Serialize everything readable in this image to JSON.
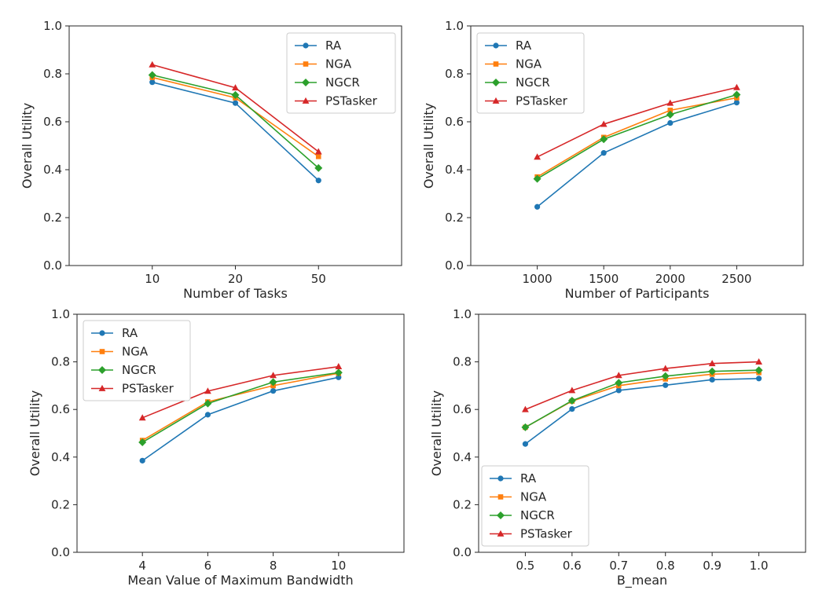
{
  "colors": {
    "RA": "#1f77b4",
    "NGA": "#ff7f0e",
    "NGCR": "#2ca02c",
    "PSTasker": "#d62728"
  },
  "markers": {
    "RA": "circle",
    "NGA": "square",
    "NGCR": "diamond",
    "PSTasker": "triangle"
  },
  "chart_data": [
    {
      "type": "line",
      "xlabel": "Number of Tasks",
      "ylabel": "Overall Utility",
      "xlim": [
        0,
        80
      ],
      "ylim": [
        0,
        1.0
      ],
      "x": [
        20,
        40,
        60
      ],
      "xtick_labels": [
        "10",
        "20",
        "50"
      ],
      "yticks": [
        "0.0",
        "0.2",
        "0.4",
        "0.6",
        "0.8",
        "1.0"
      ],
      "legend_position": "top-right",
      "series": [
        {
          "name": "RA",
          "values": [
            0.765,
            0.678,
            0.355
          ]
        },
        {
          "name": "NGA",
          "values": [
            0.785,
            0.7,
            0.455
          ]
        },
        {
          "name": "NGCR",
          "values": [
            0.795,
            0.712,
            0.407
          ]
        },
        {
          "name": "PSTasker",
          "values": [
            0.838,
            0.742,
            0.475
          ]
        }
      ]
    },
    {
      "type": "line",
      "xlabel": "Number of Participants",
      "ylabel": "Overall Utility",
      "xlim": [
        500,
        3000
      ],
      "ylim": [
        0,
        1.0
      ],
      "x": [
        1000,
        1500,
        2000,
        2500
      ],
      "xtick_labels": [
        "1000",
        "1500",
        "2000",
        "2500"
      ],
      "yticks": [
        "0.0",
        "0.2",
        "0.4",
        "0.6",
        "0.8",
        "1.0"
      ],
      "legend_position": "top-left",
      "series": [
        {
          "name": "RA",
          "values": [
            0.245,
            0.47,
            0.595,
            0.68
          ]
        },
        {
          "name": "NGA",
          "values": [
            0.37,
            0.535,
            0.648,
            0.7
          ]
        },
        {
          "name": "NGCR",
          "values": [
            0.362,
            0.527,
            0.63,
            0.713
          ]
        },
        {
          "name": "PSTasker",
          "values": [
            0.453,
            0.59,
            0.678,
            0.743
          ]
        }
      ]
    },
    {
      "type": "line",
      "xlabel": "Mean Value of Maximum Bandwidth",
      "ylabel": "Overall Utility",
      "xlim": [
        2,
        12
      ],
      "ylim": [
        0,
        1.0
      ],
      "x": [
        4,
        6,
        8,
        10
      ],
      "xtick_labels": [
        "4",
        "6",
        "8",
        "10"
      ],
      "yticks": [
        "0.0",
        "0.2",
        "0.4",
        "0.6",
        "0.8",
        "1.0"
      ],
      "legend_position": "top-left",
      "series": [
        {
          "name": "RA",
          "values": [
            0.385,
            0.578,
            0.678,
            0.735
          ]
        },
        {
          "name": "NGA",
          "values": [
            0.47,
            0.632,
            0.7,
            0.752
          ]
        },
        {
          "name": "NGCR",
          "values": [
            0.462,
            0.625,
            0.715,
            0.755
          ]
        },
        {
          "name": "PSTasker",
          "values": [
            0.565,
            0.677,
            0.743,
            0.78
          ]
        }
      ]
    },
    {
      "type": "line",
      "xlabel": "B_mean",
      "ylabel": "Overall Utility",
      "xlim": [
        0.4,
        1.1
      ],
      "ylim": [
        0,
        1.0
      ],
      "x": [
        0.5,
        0.6,
        0.7,
        0.8,
        0.9,
        1.0
      ],
      "xtick_labels": [
        "0.5",
        "0.6",
        "0.7",
        "0.8",
        "0.9",
        "1.0"
      ],
      "yticks": [
        "0.0",
        "0.2",
        "0.4",
        "0.6",
        "0.8",
        "1.0"
      ],
      "legend_position": "bottom-left",
      "series": [
        {
          "name": "RA",
          "values": [
            0.455,
            0.602,
            0.68,
            0.702,
            0.725,
            0.73
          ]
        },
        {
          "name": "NGA",
          "values": [
            0.525,
            0.635,
            0.7,
            0.728,
            0.748,
            0.755
          ]
        },
        {
          "name": "NGCR",
          "values": [
            0.525,
            0.637,
            0.712,
            0.74,
            0.76,
            0.765
          ]
        },
        {
          "name": "PSTasker",
          "values": [
            0.6,
            0.68,
            0.743,
            0.772,
            0.793,
            0.8
          ]
        }
      ]
    }
  ]
}
